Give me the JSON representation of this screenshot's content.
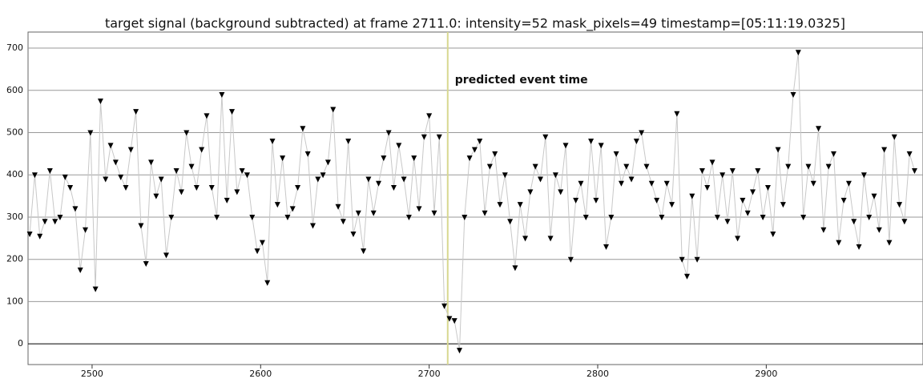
{
  "chart_data": {
    "type": "line",
    "title": "target signal (background subtracted) at frame 2711.0: intensity=52 mask_pixels=49 timestamp=[05:11:19.0325]",
    "x": [
      2463,
      2466,
      2469,
      2472,
      2475,
      2478,
      2481,
      2484,
      2487,
      2490,
      2493,
      2496,
      2499,
      2502,
      2505,
      2508,
      2511,
      2514,
      2517,
      2520,
      2523,
      2526,
      2529,
      2532,
      2535,
      2538,
      2541,
      2544,
      2547,
      2550,
      2553,
      2556,
      2559,
      2562,
      2565,
      2568,
      2571,
      2574,
      2577,
      2580,
      2583,
      2586,
      2589,
      2592,
      2595,
      2598,
      2601,
      2604,
      2607,
      2610,
      2613,
      2616,
      2619,
      2622,
      2625,
      2628,
      2631,
      2634,
      2637,
      2640,
      2643,
      2646,
      2649,
      2652,
      2655,
      2658,
      2661,
      2664,
      2667,
      2670,
      2673,
      2676,
      2679,
      2682,
      2685,
      2688,
      2691,
      2694,
      2697,
      2700,
      2703,
      2706,
      2709,
      2712,
      2715,
      2718,
      2721,
      2724,
      2727,
      2730,
      2733,
      2736,
      2739,
      2742,
      2745,
      2748,
      2751,
      2754,
      2757,
      2760,
      2763,
      2766,
      2769,
      2772,
      2775,
      2778,
      2781,
      2784,
      2787,
      2790,
      2793,
      2796,
      2799,
      2802,
      2805,
      2808,
      2811,
      2814,
      2817,
      2820,
      2823,
      2826,
      2829,
      2832,
      2835,
      2838,
      2841,
      2844,
      2847,
      2850,
      2853,
      2856,
      2859,
      2862,
      2865,
      2868,
      2871,
      2874,
      2877,
      2880,
      2883,
      2886,
      2889,
      2892,
      2895,
      2898,
      2901,
      2904,
      2907,
      2910,
      2913,
      2916,
      2919,
      2922,
      2925,
      2928,
      2931,
      2934,
      2937,
      2940,
      2943,
      2946,
      2949,
      2952,
      2955,
      2958,
      2961,
      2964,
      2967,
      2970,
      2973,
      2976,
      2979,
      2982,
      2985,
      2988
    ],
    "values": [
      260,
      400,
      255,
      290,
      410,
      290,
      300,
      395,
      370,
      320,
      175,
      270,
      500,
      130,
      575,
      390,
      470,
      430,
      395,
      370,
      460,
      550,
      280,
      190,
      430,
      350,
      390,
      210,
      300,
      410,
      360,
      500,
      420,
      370,
      460,
      540,
      370,
      300,
      590,
      340,
      550,
      360,
      410,
      400,
      300,
      220,
      240,
      145,
      480,
      330,
      440,
      300,
      320,
      370,
      510,
      450,
      280,
      390,
      400,
      430,
      555,
      325,
      290,
      480,
      260,
      310,
      220,
      390,
      310,
      380,
      440,
      500,
      370,
      470,
      390,
      300,
      440,
      320,
      490,
      540,
      310,
      490,
      90,
      60,
      55,
      -15,
      300,
      440,
      460,
      480,
      310,
      420,
      450,
      330,
      400,
      290,
      180,
      330,
      250,
      360,
      420,
      390,
      490,
      250,
      400,
      360,
      470,
      200,
      340,
      380,
      300,
      480,
      340,
      470,
      230,
      300,
      450,
      380,
      420,
      390,
      480,
      500,
      420,
      380,
      340,
      300,
      380,
      330,
      545,
      200,
      160,
      350,
      200,
      410,
      370,
      430,
      300,
      400,
      290,
      410,
      250,
      340,
      310,
      360,
      410,
      300,
      370,
      260,
      460,
      330,
      420,
      590,
      690,
      300,
      420,
      380,
      510,
      270,
      420,
      450,
      240,
      340,
      380,
      290,
      230,
      400,
      300,
      350,
      270,
      460,
      240,
      490,
      330,
      290,
      450,
      410
    ],
    "color": "#000000",
    "line_color": "#c8c8c8",
    "xlim": [
      2462,
      2993
    ],
    "ylim": [
      -49,
      738
    ],
    "xticks": [
      2500,
      2600,
      2700,
      2800,
      2900
    ],
    "yticks": [
      0,
      100,
      200,
      300,
      400,
      500,
      600,
      700
    ],
    "grid": true,
    "annotations": [
      {
        "x": 2711,
        "text": "predicted event time",
        "color": "#d8d890"
      }
    ]
  }
}
